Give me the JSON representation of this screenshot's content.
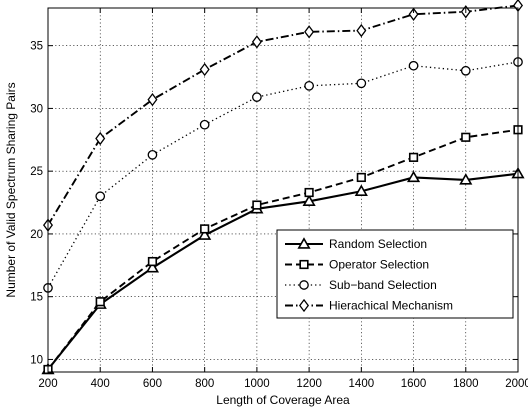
{
  "chart_data": {
    "type": "line",
    "xlabel": "Length of Coverage Area",
    "ylabel": "Number of Valid Spectrum Sharing Pairs",
    "x": [
      200,
      400,
      600,
      800,
      1000,
      1200,
      1400,
      1600,
      1800,
      2000
    ],
    "xlim": [
      200,
      2000
    ],
    "ylim": [
      9,
      38
    ],
    "xticks": [
      "200",
      "400",
      "600",
      "800",
      "1000",
      "1200",
      "1400",
      "1600",
      "1800",
      "2000"
    ],
    "yticks": [
      "10",
      "15",
      "20",
      "25",
      "30",
      "35"
    ],
    "grid": true,
    "legend_position": "lower-right",
    "series": [
      {
        "name": "Random Selection",
        "marker": "triangle",
        "line_style": "solid",
        "values": [
          9.2,
          14.4,
          17.3,
          19.9,
          22.0,
          22.6,
          23.4,
          24.5,
          24.3,
          24.8
        ]
      },
      {
        "name": "Operator Selection",
        "marker": "square",
        "line_style": "dashed",
        "values": [
          9.2,
          14.6,
          17.8,
          20.4,
          22.3,
          23.3,
          24.5,
          26.1,
          27.7,
          28.3
        ]
      },
      {
        "name": "Sub−band Selection",
        "marker": "circle",
        "line_style": "dotted",
        "values": [
          15.7,
          23.0,
          26.3,
          28.7,
          30.9,
          31.8,
          32.0,
          33.4,
          33.0,
          33.7
        ]
      },
      {
        "name": "Hierachical Mechanism",
        "marker": "diamond",
        "line_style": "dash-dot",
        "values": [
          20.7,
          27.6,
          30.7,
          33.1,
          35.3,
          36.1,
          36.2,
          37.5,
          37.7,
          38.2
        ]
      }
    ]
  }
}
